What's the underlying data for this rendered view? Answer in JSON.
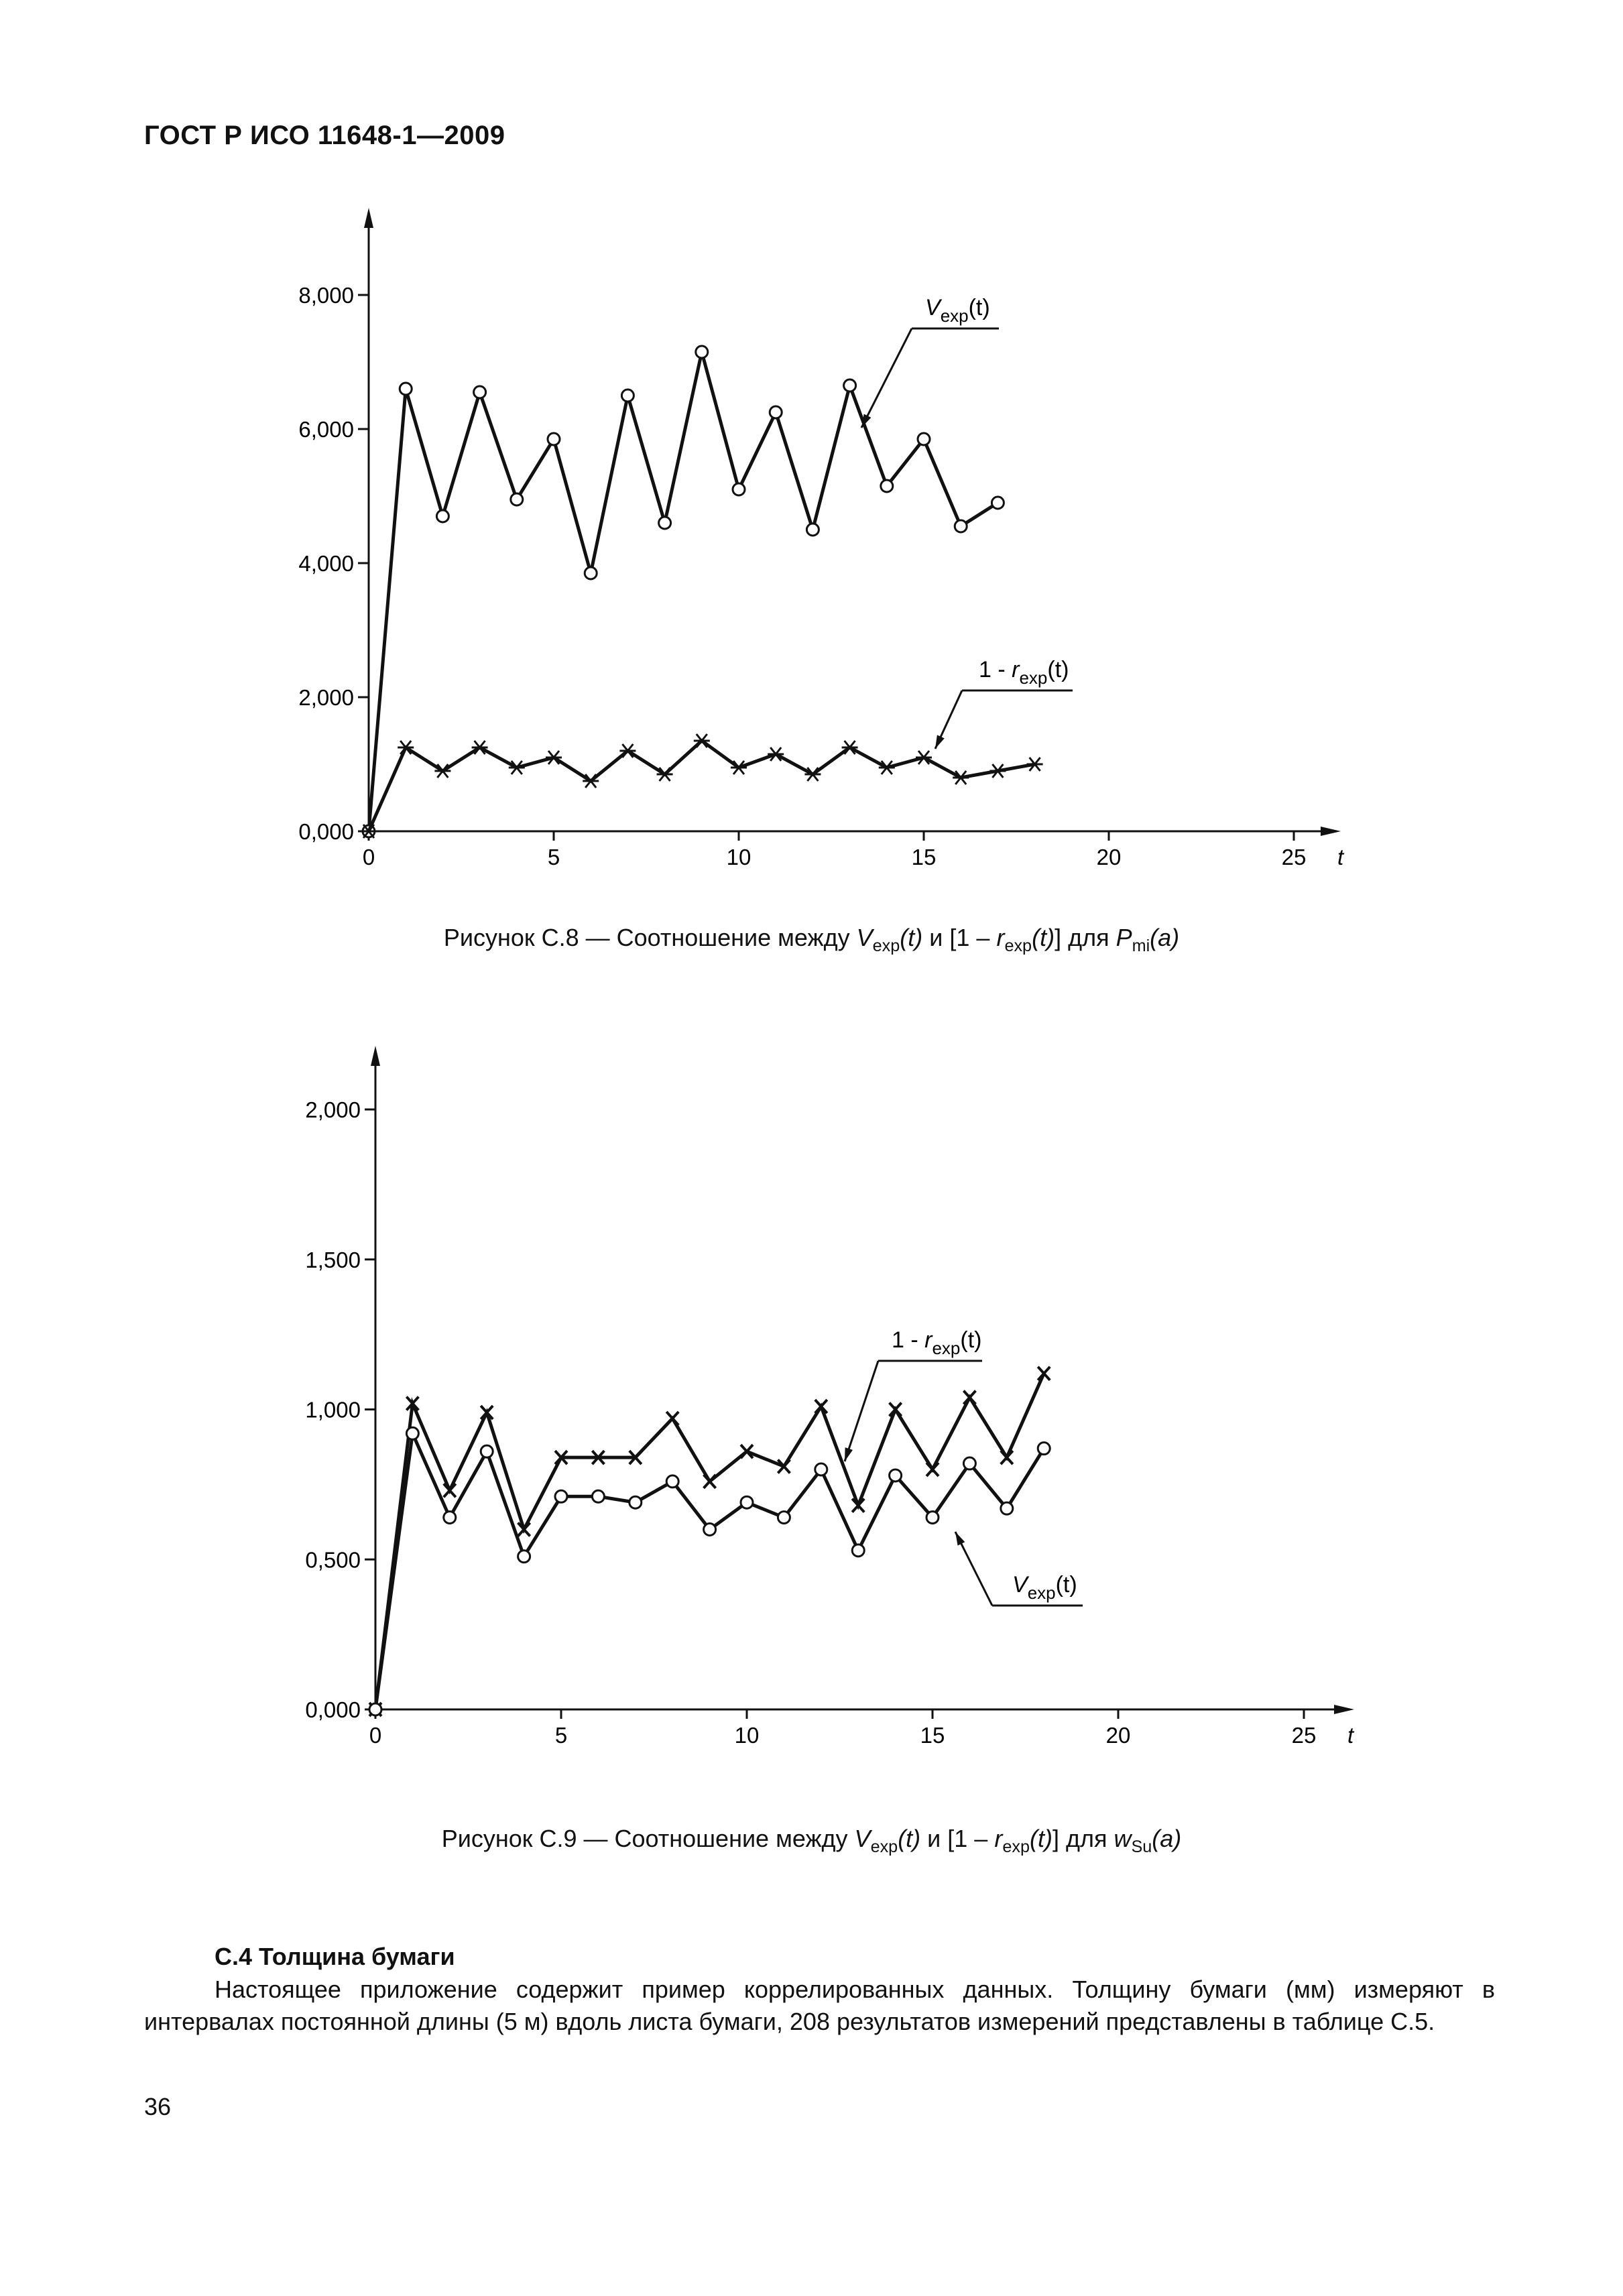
{
  "header": {
    "title": "ГОСТ Р ИСО 11648-1—2009"
  },
  "figure1": {
    "caption": {
      "prefix": "Рисунок С.8 — Соотношение между ",
      "v": "V",
      "v_sub": "exp",
      "v_arg": "(t)",
      "mid": " и [1 – ",
      "r": "r",
      "r_sub": "exp",
      "r_arg": "(t)",
      "end": "] для ",
      "p": "P",
      "p_sub": "mi",
      "p_arg": "(a)"
    }
  },
  "figure2": {
    "caption": {
      "prefix": "Рисунок С.9 — Соотношение между ",
      "v": "V",
      "v_sub": "exp",
      "v_arg": "(t)",
      "mid": " и [1 – ",
      "r": "r",
      "r_sub": "exp",
      "r_arg": "(t)",
      "end": "] для ",
      "p": "w",
      "p_sub": "Su",
      "p_arg": "(a)"
    }
  },
  "section": {
    "title": "С.4 Толщина бумаги",
    "paragraph": "Настоящее приложение содержит пример коррелированных данных. Толщину бумаги (мм) измеряют в интервалах постоянной длины (5 м) вдоль листа бумаги, 208 результатов измерений представлены в таблице С.5."
  },
  "page_number": "36",
  "chart_data": [
    {
      "type": "line",
      "x_label": "t",
      "xlim": [
        0,
        25
      ],
      "ylim": [
        0,
        8
      ],
      "x_ticks": [
        "0",
        "5",
        "10",
        "15",
        "20",
        "25"
      ],
      "y_ticks": [
        "0,000",
        "2,000",
        "4,000",
        "6,000",
        "8,000"
      ],
      "series": [
        {
          "name": "V_exp(t)",
          "label_main": "V",
          "label_sub": "exp",
          "label_arg": "(t)",
          "marker": "circle",
          "x": [
            0,
            1,
            2,
            3,
            4,
            5,
            6,
            7,
            8,
            9,
            10,
            11,
            12,
            13,
            14,
            15,
            16,
            17
          ],
          "y": [
            0,
            6.6,
            4.7,
            6.55,
            4.95,
            5.85,
            3.85,
            6.5,
            4.6,
            7.15,
            5.1,
            6.25,
            4.5,
            6.65,
            5.15,
            5.85,
            4.55,
            4.9
          ]
        },
        {
          "name": "1 - r_exp(t)",
          "label_main": "1 - r",
          "label_sub": "exp",
          "label_arg": "(t)",
          "marker": "star",
          "x": [
            0,
            1,
            2,
            3,
            4,
            5,
            6,
            7,
            8,
            9,
            10,
            11,
            12,
            13,
            14,
            15,
            16,
            17,
            18
          ],
          "y": [
            0,
            1.25,
            0.9,
            1.25,
            0.95,
            1.1,
            0.75,
            1.2,
            0.85,
            1.35,
            0.95,
            1.15,
            0.85,
            1.25,
            0.95,
            1.1,
            0.8,
            0.9,
            1.0
          ]
        }
      ]
    },
    {
      "type": "line",
      "x_label": "t",
      "xlim": [
        0,
        25
      ],
      "ylim": [
        0,
        2
      ],
      "x_ticks": [
        "0",
        "5",
        "10",
        "15",
        "20",
        "25"
      ],
      "y_ticks": [
        "0,000",
        "0,500",
        "1,000",
        "1,500",
        "2,000"
      ],
      "series": [
        {
          "name": "1 - r_exp(t)",
          "label_main": "1 - r",
          "label_sub": "exp",
          "label_arg": "(t)",
          "marker": "x",
          "x": [
            0,
            1,
            2,
            3,
            4,
            5,
            6,
            7,
            8,
            9,
            10,
            11,
            12,
            13,
            14,
            15,
            16,
            17,
            18
          ],
          "y": [
            0,
            1.02,
            0.73,
            0.99,
            0.6,
            0.84,
            0.84,
            0.84,
            0.97,
            0.76,
            0.86,
            0.81,
            1.01,
            0.68,
            1.0,
            0.8,
            1.04,
            0.84,
            1.12
          ]
        },
        {
          "name": "V_exp(t)",
          "label_main": "V",
          "label_sub": "exp",
          "label_arg": "(t)",
          "marker": "circle",
          "x": [
            0,
            1,
            2,
            3,
            4,
            5,
            6,
            7,
            8,
            9,
            10,
            11,
            12,
            13,
            14,
            15,
            16,
            17,
            18
          ],
          "y": [
            0,
            0.92,
            0.64,
            0.86,
            0.51,
            0.71,
            0.71,
            0.69,
            0.76,
            0.6,
            0.69,
            0.64,
            0.8,
            0.53,
            0.78,
            0.64,
            0.82,
            0.67,
            0.87
          ]
        }
      ]
    }
  ]
}
